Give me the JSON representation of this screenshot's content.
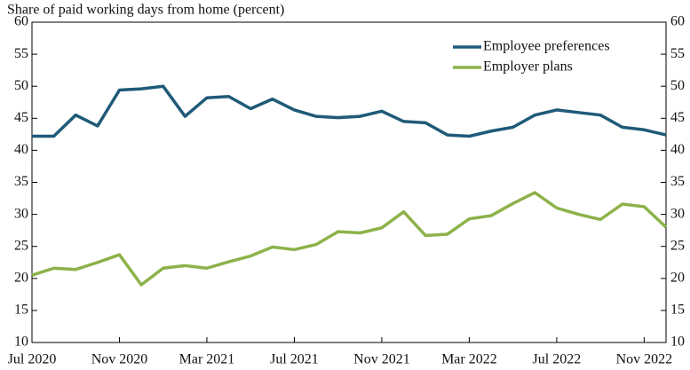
{
  "chart_data": {
    "type": "line",
    "title": "Share of paid working days from home (percent)",
    "categories": [
      "Jul 2020",
      null,
      null,
      null,
      "Nov 2020",
      null,
      null,
      null,
      "Mar 2021",
      null,
      null,
      null,
      "Jul 2021",
      null,
      null,
      null,
      "Nov 2021",
      null,
      null,
      null,
      "Mar 2022",
      null,
      null,
      null,
      "Jul 2022",
      null,
      null,
      null,
      "Nov 2022",
      null
    ],
    "series": [
      {
        "name": "Employee preferences",
        "color": "#1f5a78",
        "values": [
          42.2,
          42.2,
          45.5,
          43.8,
          49.4,
          49.6,
          50,
          45.3,
          48.2,
          48.4,
          46.5,
          48,
          46.3,
          45.3,
          45.1,
          45.3,
          46.1,
          44.5,
          44.3,
          42.4,
          42.2,
          43,
          43.6,
          45.5,
          46.3,
          45.9,
          45.5,
          43.6,
          43.2,
          42.4
        ]
      },
      {
        "name": "Employer plans",
        "color": "#8db24a",
        "values": [
          20.5,
          21.6,
          21.4,
          22.5,
          23.7,
          19,
          21.6,
          22,
          21.6,
          22.6,
          23.5,
          24.9,
          24.5,
          25.3,
          27.3,
          27.1,
          27.9,
          30.4,
          26.7,
          26.9,
          29.3,
          29.8,
          31.7,
          33.4,
          31,
          30,
          29.2,
          31.6,
          31.2,
          28
        ]
      }
    ],
    "ylim": [
      10,
      60
    ],
    "yticks": [
      10,
      15,
      20,
      25,
      30,
      35,
      40,
      45,
      50,
      55,
      60
    ],
    "y2lim": [
      10,
      60
    ],
    "y2ticks": [
      10,
      15,
      20,
      25,
      30,
      35,
      40,
      45,
      50,
      55,
      60
    ],
    "legend": "upper right"
  }
}
